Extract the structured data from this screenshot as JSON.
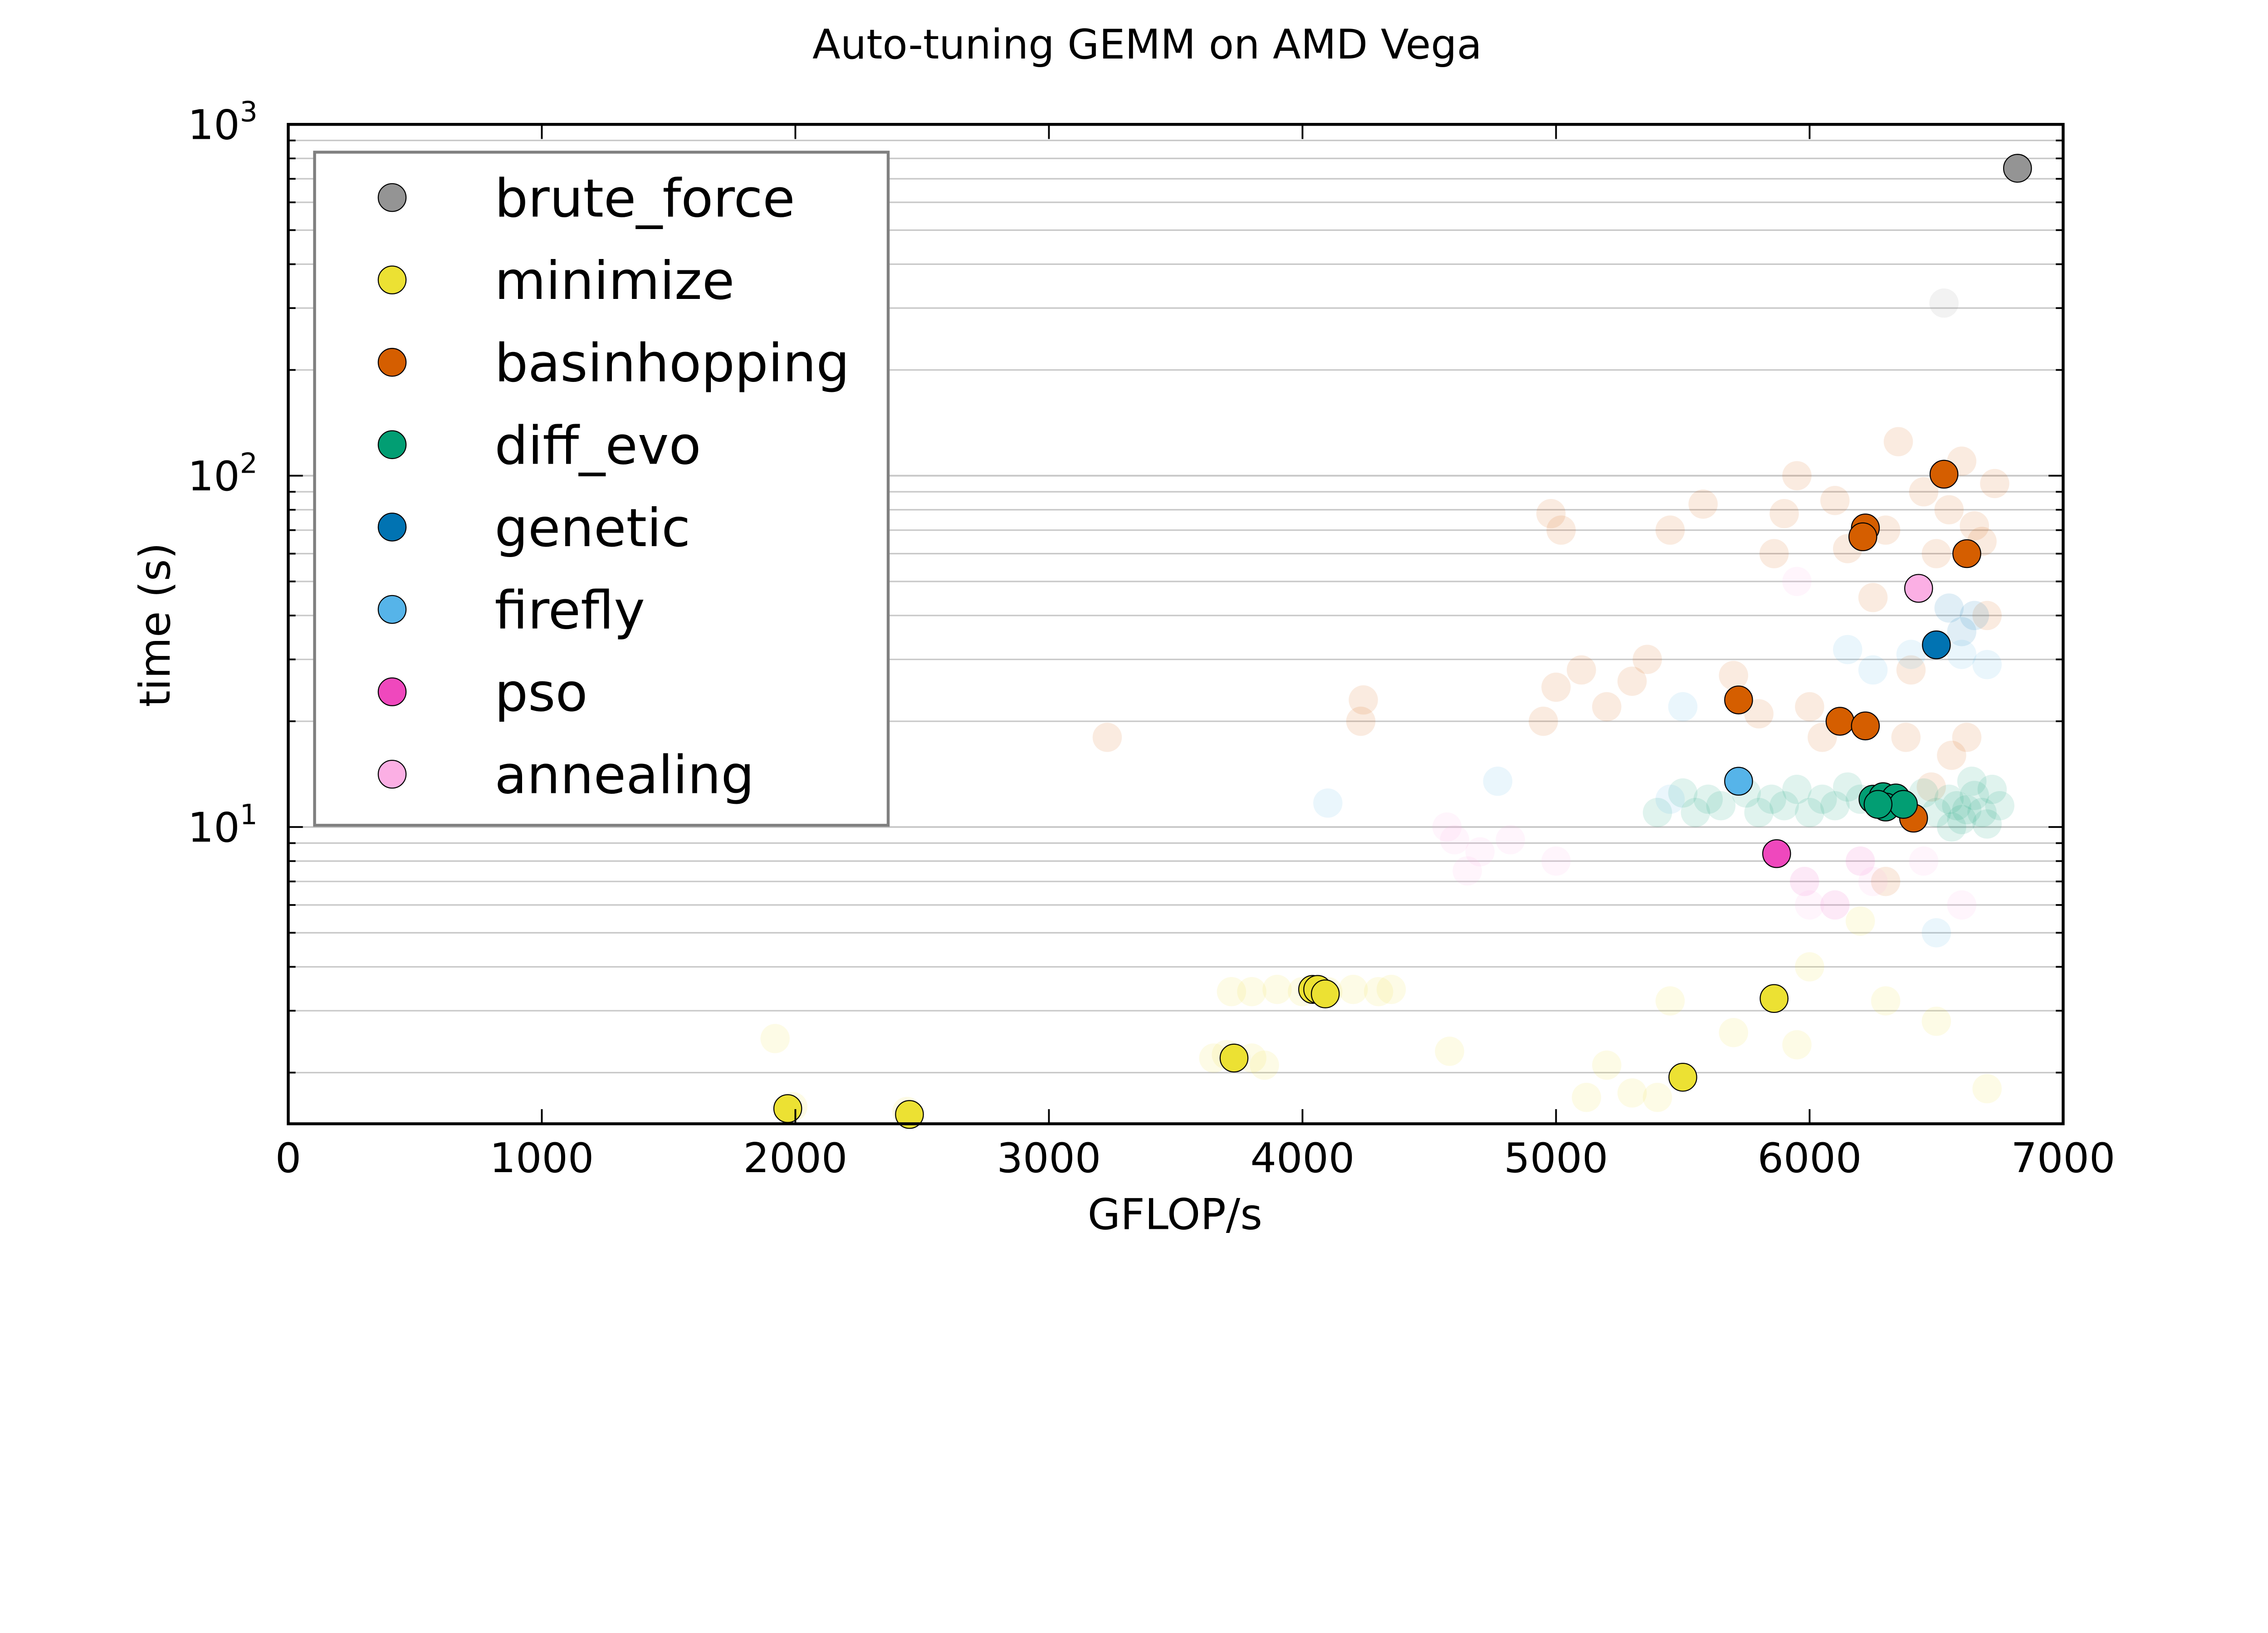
{
  "chart_data": {
    "type": "scatter",
    "title": "Auto-tuning GEMM on AMD Vega",
    "xlabel": "GFLOP/s",
    "ylabel": "time (s)",
    "xlim": [
      0,
      7000
    ],
    "ylim": [
      1.43,
      1000
    ],
    "yscale": "log",
    "grid": "horizontal major and minor",
    "legend_placement": "upper-left",
    "x_ticks": [
      "0",
      "1000",
      "2000",
      "3000",
      "4000",
      "5000",
      "6000",
      "7000"
    ],
    "x_tick_values": [
      0,
      1000,
      2000,
      3000,
      4000,
      5000,
      6000,
      7000
    ],
    "y_ticks": [
      {
        "base": "10",
        "exp": "1",
        "value": 10
      },
      {
        "base": "10",
        "exp": "2",
        "value": 100
      },
      {
        "base": "10",
        "exp": "3",
        "value": 1000
      }
    ],
    "series": [
      {
        "name": "brute_force",
        "color": "#949494",
        "points": [
          [
            6820,
            750
          ]
        ],
        "faded": [
          [
            6530,
            310
          ]
        ]
      },
      {
        "name": "minimize",
        "color": "#ece133",
        "points": [
          [
            1970,
            1.58
          ],
          [
            2450,
            1.52
          ],
          [
            3730,
            2.2
          ],
          [
            4040,
            3.45
          ],
          [
            4060,
            3.45
          ],
          [
            4090,
            3.35
          ],
          [
            5500,
            1.94
          ],
          [
            5860,
            3.25
          ]
        ],
        "faded": [
          [
            1920,
            2.5
          ],
          [
            1990,
            1.6
          ],
          [
            2440,
            1.55
          ],
          [
            3650,
            2.2
          ],
          [
            3700,
            2.25
          ],
          [
            3800,
            2.2
          ],
          [
            3850,
            2.1
          ],
          [
            3720,
            3.4
          ],
          [
            3800,
            3.4
          ],
          [
            3900,
            3.45
          ],
          [
            4000,
            3.4
          ],
          [
            4100,
            3.4
          ],
          [
            4200,
            3.45
          ],
          [
            4300,
            3.4
          ],
          [
            4350,
            3.45
          ],
          [
            4580,
            2.3
          ],
          [
            5120,
            1.7
          ],
          [
            5200,
            2.1
          ],
          [
            5300,
            1.75
          ],
          [
            5400,
            1.7
          ],
          [
            5450,
            3.2
          ],
          [
            5700,
            2.6
          ],
          [
            5950,
            2.4
          ],
          [
            6000,
            4.0
          ],
          [
            6200,
            5.4
          ],
          [
            6300,
            3.2
          ],
          [
            6500,
            2.8
          ],
          [
            6700,
            1.8
          ]
        ]
      },
      {
        "name": "basinhopping",
        "color": "#d55e00",
        "points": [
          [
            6530,
            101
          ],
          [
            6220,
            71
          ],
          [
            6210,
            67
          ],
          [
            6620,
            60
          ],
          [
            5720,
            23
          ],
          [
            6120,
            20
          ],
          [
            6220,
            19.4
          ],
          [
            6410,
            10.6
          ]
        ],
        "faded": [
          [
            3230,
            18
          ],
          [
            4230,
            20
          ],
          [
            4240,
            23
          ],
          [
            4980,
            78
          ],
          [
            5020,
            70
          ],
          [
            5000,
            25
          ],
          [
            4950,
            20
          ],
          [
            5100,
            28
          ],
          [
            5200,
            22
          ],
          [
            5300,
            26
          ],
          [
            5360,
            30
          ],
          [
            5450,
            70
          ],
          [
            5580,
            83
          ],
          [
            5700,
            27
          ],
          [
            5800,
            21
          ],
          [
            5860,
            60
          ],
          [
            5900,
            78
          ],
          [
            5950,
            100
          ],
          [
            6000,
            22
          ],
          [
            6050,
            18
          ],
          [
            6100,
            85
          ],
          [
            6150,
            62
          ],
          [
            6250,
            45
          ],
          [
            6300,
            70
          ],
          [
            6350,
            125
          ],
          [
            6380,
            18
          ],
          [
            6400,
            28
          ],
          [
            6450,
            90
          ],
          [
            6500,
            60
          ],
          [
            6550,
            80
          ],
          [
            6600,
            110
          ],
          [
            6650,
            72
          ],
          [
            6700,
            40
          ],
          [
            6620,
            18
          ],
          [
            6560,
            16
          ],
          [
            6680,
            65
          ],
          [
            6730,
            95
          ],
          [
            6480,
            13
          ],
          [
            6300,
            7
          ]
        ]
      },
      {
        "name": "diff_evo",
        "color": "#029e73",
        "points": [
          [
            6250,
            12
          ],
          [
            6290,
            12.2
          ],
          [
            6340,
            12.1
          ],
          [
            6300,
            11.4
          ],
          [
            6370,
            11.6
          ],
          [
            6270,
            11.6
          ]
        ],
        "faded": [
          [
            5400,
            11
          ],
          [
            5500,
            12.5
          ],
          [
            5550,
            11
          ],
          [
            5600,
            12
          ],
          [
            5650,
            11.5
          ],
          [
            5750,
            12.5
          ],
          [
            5800,
            11
          ],
          [
            5850,
            12
          ],
          [
            5900,
            11.5
          ],
          [
            5950,
            12.8
          ],
          [
            6000,
            11
          ],
          [
            6050,
            12
          ],
          [
            6100,
            11.5
          ],
          [
            6150,
            13
          ],
          [
            6200,
            12
          ],
          [
            6450,
            12.5
          ],
          [
            6500,
            11
          ],
          [
            6550,
            12
          ],
          [
            6580,
            11.5
          ],
          [
            6600,
            10.5
          ],
          [
            6620,
            11.2
          ],
          [
            6650,
            12.3
          ],
          [
            6680,
            11
          ],
          [
            6700,
            10.2
          ],
          [
            6720,
            12.8
          ],
          [
            6750,
            11.5
          ],
          [
            6640,
            13.5
          ],
          [
            6560,
            10
          ]
        ]
      },
      {
        "name": "genetic",
        "color": "#0173b2",
        "points": [
          [
            6500,
            33
          ]
        ],
        "faded": [
          [
            6550,
            42
          ],
          [
            6600,
            36
          ],
          [
            6650,
            40
          ]
        ]
      },
      {
        "name": "firefly",
        "color": "#56b4e9",
        "points": [
          [
            5720,
            13.5
          ]
        ],
        "faded": [
          [
            4100,
            11.7
          ],
          [
            4770,
            13.5
          ],
          [
            5500,
            22
          ],
          [
            5450,
            12
          ],
          [
            6150,
            32
          ],
          [
            6250,
            28
          ],
          [
            6400,
            31
          ],
          [
            6600,
            31
          ],
          [
            6700,
            29
          ],
          [
            6500,
            5
          ]
        ]
      },
      {
        "name": "pso",
        "color": "#ef48bd",
        "points": [
          [
            5870,
            8.4
          ]
        ],
        "faded": [
          [
            5980,
            7
          ],
          [
            6100,
            6
          ],
          [
            6200,
            8
          ]
        ]
      },
      {
        "name": "annealing",
        "color": "#fbafe4",
        "points": [
          [
            6430,
            47.8
          ]
        ],
        "faded": [
          [
            4570,
            10
          ],
          [
            4600,
            9.2
          ],
          [
            4700,
            8.5
          ],
          [
            4650,
            7.5
          ],
          [
            4820,
            9.2
          ],
          [
            5000,
            8
          ],
          [
            5950,
            50
          ],
          [
            6000,
            6
          ],
          [
            6250,
            7
          ],
          [
            6450,
            8
          ],
          [
            6600,
            6
          ]
        ]
      }
    ]
  }
}
